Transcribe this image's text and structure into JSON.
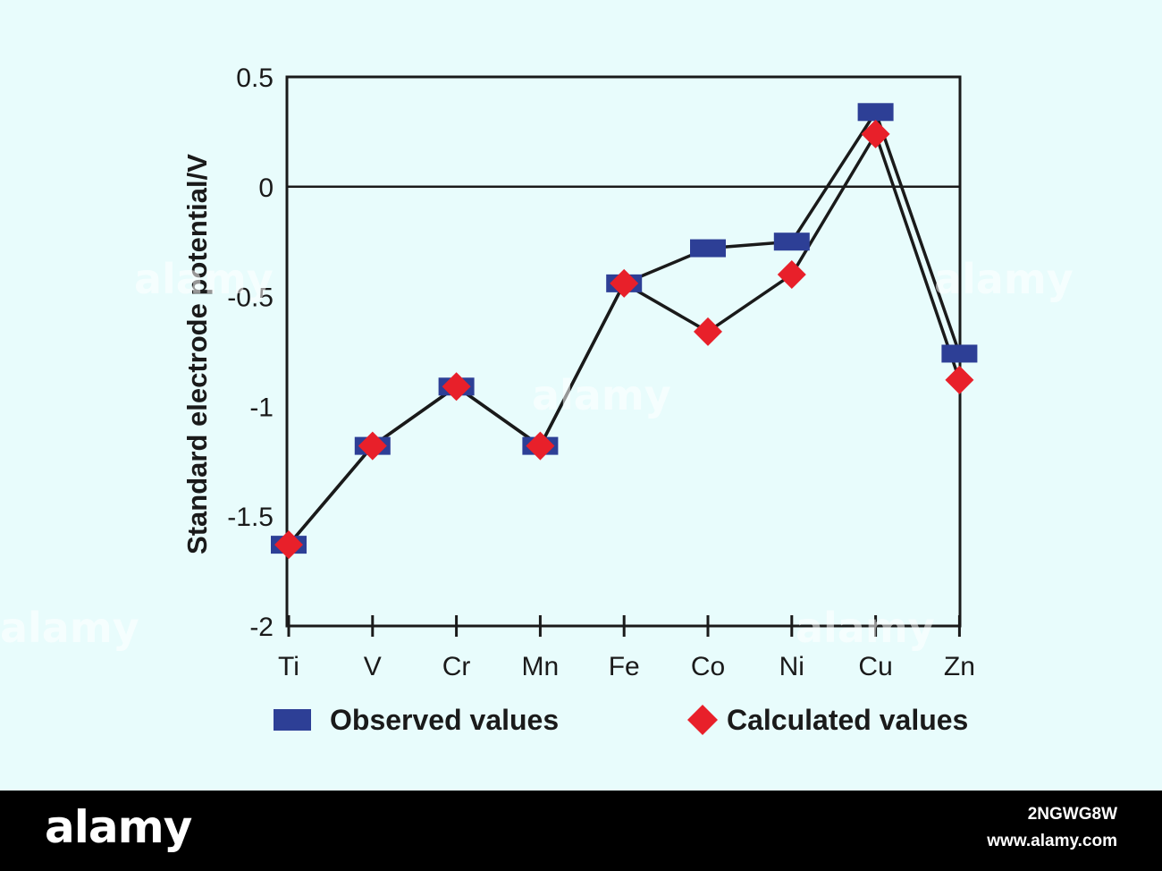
{
  "chart_data": {
    "type": "line",
    "title": "",
    "xlabel": "",
    "ylabel": "Standard electrode potential/V",
    "ylim": [
      -2,
      0.5
    ],
    "yticks": [
      "0.5",
      "0",
      "-0.5",
      "-1",
      "-1.5",
      "-2"
    ],
    "ytick_values": [
      0.5,
      0,
      -0.5,
      -1,
      -1.5,
      -2
    ],
    "reference_line": 0,
    "categories": [
      "Ti",
      "V",
      "Cr",
      "Mn",
      "Fe",
      "Co",
      "Ni",
      "Cu",
      "Zn"
    ],
    "series": [
      {
        "name": "Observed values",
        "marker": "square",
        "color": "#2d3f96",
        "values": [
          -1.63,
          -1.18,
          -0.91,
          -1.18,
          -0.44,
          -0.28,
          -0.25,
          0.34,
          -0.76
        ]
      },
      {
        "name": "Calculated values",
        "marker": "diamond",
        "color": "#e8202a",
        "values": [
          -1.63,
          -1.18,
          -0.91,
          -1.18,
          -0.44,
          -0.66,
          -0.4,
          0.24,
          -0.88
        ]
      }
    ],
    "legend": [
      {
        "label": "Observed values",
        "marker": "square",
        "color": "#2d3f96"
      },
      {
        "label": "Calculated values",
        "marker": "diamond",
        "color": "#e8202a"
      }
    ],
    "line_color": "#1a1a1a"
  },
  "footer": {
    "brand": "alamy",
    "image_id": "2NGWG8W",
    "url": "www.alamy.com"
  },
  "watermark": "alamy"
}
